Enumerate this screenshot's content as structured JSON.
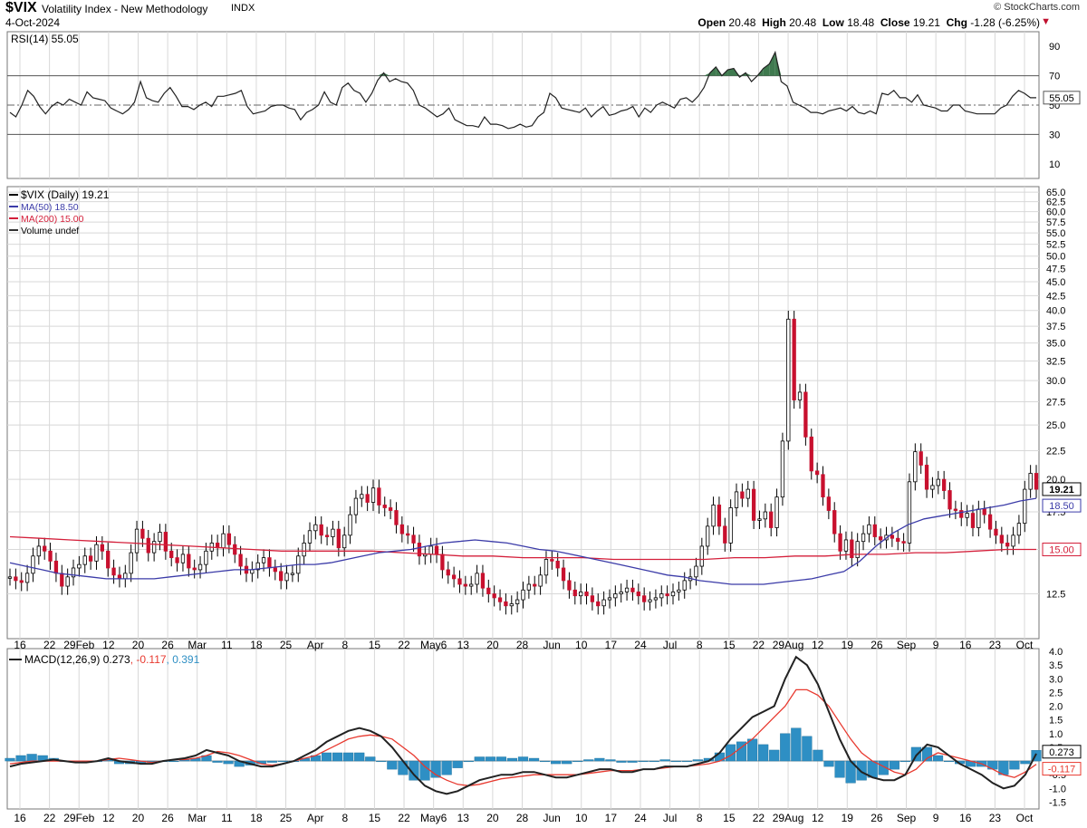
{
  "header": {
    "symbol": "$VIX",
    "name": "Volatility Index - New Methodology",
    "exchange": "INDX",
    "date": "4-Oct-2024",
    "brand": "© StockCharts.com",
    "open_label": "Open",
    "open": "20.48",
    "high_label": "High",
    "high": "20.48",
    "low_label": "Low",
    "low": "18.48",
    "close_label": "Close",
    "close": "19.21",
    "chg_label": "Chg",
    "chg": "-1.28 (-6.25%)",
    "down_arrow": "▼"
  },
  "colors": {
    "up": "#ffffff",
    "down": "#c8102e",
    "candle_outline": "#000000",
    "ma50": "#3b3ba8",
    "ma200": "#d41f3a",
    "rsi": "#222222",
    "rsi_overbought_fill": "#3f7a4f",
    "macd": "#222222",
    "signal": "#e8392f",
    "histogram": "#2e8fc4",
    "grid": "#d8d8d8"
  },
  "x_axis": {
    "ticks": [
      "16",
      "22",
      "29Feb",
      "12",
      "20",
      "26",
      "Mar",
      "11",
      "18",
      "25",
      "Apr",
      "8",
      "15",
      "22",
      "May6",
      "13",
      "20",
      "28",
      "Jun",
      "10",
      "17",
      "24",
      "Jul",
      "8",
      "15",
      "22",
      "29Aug",
      "12",
      "19",
      "26",
      "Sep",
      "9",
      "16",
      "23",
      "Oct"
    ]
  },
  "chart_data": [
    {
      "type": "line",
      "title": "RSI(14) 55.05",
      "series": [
        {
          "name": "RSI(14)",
          "last_label": "55.05"
        }
      ],
      "x_start": "16",
      "x_end": "Oct",
      "values": [
        45,
        42,
        50,
        60,
        56,
        49,
        44,
        49,
        52,
        50,
        54,
        52,
        50,
        59,
        55,
        54,
        53,
        48,
        46,
        44,
        47,
        52,
        66,
        55,
        53,
        52,
        58,
        62,
        56,
        49,
        49,
        47,
        50,
        52,
        49,
        56,
        56,
        57,
        58,
        60,
        49,
        44,
        45,
        46,
        49,
        50,
        50,
        48,
        47,
        40,
        45,
        47,
        50,
        59,
        52,
        50,
        62,
        65,
        60,
        58,
        52,
        58,
        67,
        72,
        66,
        68,
        66,
        65,
        60,
        50,
        48,
        45,
        42,
        44,
        48,
        40,
        38,
        36,
        36,
        35,
        42,
        37,
        37,
        36,
        34,
        35,
        37,
        35,
        36,
        42,
        45,
        58,
        55,
        48,
        47,
        46,
        45,
        48,
        42,
        46,
        49,
        43,
        44,
        46,
        47,
        49,
        42,
        48,
        45,
        50,
        52,
        50,
        48,
        54,
        55,
        52,
        56,
        62,
        72,
        76,
        70,
        74,
        75,
        69,
        72,
        66,
        70,
        75,
        78,
        86,
        66,
        63,
        52,
        50,
        48,
        45,
        45,
        44,
        46,
        47,
        48,
        46,
        49,
        45,
        44,
        46,
        44,
        58,
        57,
        60,
        55,
        55,
        52,
        57,
        50,
        49,
        48,
        46,
        46,
        50,
        50,
        46,
        45,
        44,
        44,
        44,
        44,
        48,
        50,
        56,
        60,
        58,
        55,
        55
      ],
      "y_ticks": [
        10,
        30,
        50,
        70,
        90
      ],
      "overbought": 70,
      "oversold": 30,
      "midline": 50,
      "ylim": [
        0,
        100
      ]
    },
    {
      "type": "candlestick",
      "title": "$VIX (Daily) 19.21",
      "legend": [
        "$VIX (Daily) 19.21",
        "MA(50) 18.50",
        "MA(200) 15.00",
        "Volume undef"
      ],
      "series": [
        {
          "name": "$VIX (Daily)",
          "last_label": "19.21"
        },
        {
          "name": "MA(50)",
          "last_label": "18.50"
        },
        {
          "name": "MA(200)",
          "last_label": "15.00"
        }
      ],
      "close": [
        13.4,
        13.2,
        13.1,
        13.6,
        14.6,
        15.2,
        14.9,
        14.3,
        13.6,
        12.9,
        13.4,
        13.9,
        14.1,
        14.6,
        14.3,
        15.3,
        14.9,
        13.9,
        13.5,
        13.3,
        13.6,
        14.8,
        16.3,
        15.7,
        14.8,
        15.5,
        16.1,
        14.9,
        14.5,
        14.2,
        14.7,
        13.9,
        13.8,
        14.1,
        14.9,
        15.4,
        15.1,
        16.0,
        15.3,
        14.7,
        14.0,
        13.6,
        13.8,
        14.2,
        14.5,
        13.9,
        13.7,
        13.2,
        13.6,
        13.6,
        14.6,
        15.4,
        16.2,
        16.6,
        15.9,
        15.8,
        16.3,
        15.1,
        15.9,
        17.3,
        18.5,
        18.8,
        18.2,
        19.3,
        18.0,
        17.8,
        17.6,
        16.6,
        16.0,
        15.9,
        15.4,
        14.6,
        14.7,
        15.2,
        14.7,
        13.8,
        13.5,
        13.3,
        13.0,
        12.9,
        13.0,
        13.6,
        12.8,
        12.5,
        12.3,
        12.1,
        11.9,
        12.0,
        12.2,
        12.7,
        13.0,
        12.9,
        13.5,
        14.4,
        14.3,
        13.9,
        13.2,
        12.7,
        12.4,
        12.6,
        12.4,
        12.1,
        11.9,
        12.2,
        12.3,
        12.5,
        12.6,
        12.8,
        12.6,
        12.4,
        12.1,
        12.2,
        12.3,
        12.5,
        12.4,
        12.6,
        12.7,
        13.2,
        13.4,
        14.0,
        15.2,
        16.5,
        18.0,
        16.5,
        15.4,
        17.8,
        19.0,
        18.5,
        19.2,
        16.9,
        17.0,
        17.5,
        16.4,
        18.6,
        23.4,
        38.6,
        27.7,
        28.6,
        23.8,
        20.7,
        20.4,
        18.6,
        17.6,
        16.0,
        14.9,
        15.6,
        14.5,
        15.5,
        16.0,
        16.6,
        15.8,
        15.6,
        15.9,
        15.7,
        15.5,
        15.4,
        19.8,
        22.4,
        21.2,
        19.2,
        19.5,
        20.0,
        19.1,
        17.7,
        17.6,
        17.1,
        17.4,
        16.4,
        17.7,
        17.3,
        16.3,
        15.9,
        15.4,
        15.2,
        15.9,
        16.7,
        19.2,
        20.5,
        19.2
      ],
      "ma50": [
        14.2,
        14.0,
        13.8,
        13.6,
        13.5,
        13.4,
        13.3,
        13.3,
        13.3,
        13.3,
        13.4,
        13.5,
        13.6,
        13.7,
        13.8,
        13.8,
        13.9,
        14.0,
        14.1,
        14.1,
        14.2,
        14.4,
        14.6,
        14.8,
        14.9,
        15.0,
        15.2,
        15.4,
        15.5,
        15.6,
        15.5,
        15.4,
        15.2,
        15.0,
        14.9,
        14.7,
        14.5,
        14.3,
        14.1,
        13.9,
        13.7,
        13.5,
        13.4,
        13.2,
        13.1,
        13.0,
        13.0,
        13.0,
        13.1,
        13.2,
        13.3,
        13.5,
        13.7,
        14.3,
        15.2,
        16.0,
        16.6,
        17.0,
        17.2,
        17.4,
        17.6,
        17.8,
        18.0,
        18.3,
        18.5
      ],
      "ma200": [
        15.8,
        15.7,
        15.6,
        15.5,
        15.4,
        15.3,
        15.2,
        15.1,
        15.0,
        14.9,
        14.9,
        14.9,
        14.9,
        14.8,
        14.7,
        14.6,
        14.6,
        14.5,
        14.5,
        14.5,
        14.4,
        14.4,
        14.4,
        14.4,
        14.5,
        14.5,
        14.6,
        14.6,
        14.7,
        14.7,
        14.8,
        14.8,
        14.9,
        15.0,
        15.0
      ],
      "y_ticks": [
        12.5,
        15.0,
        17.5,
        20.0,
        22.5,
        25.0,
        27.5,
        30.0,
        32.5,
        35.0,
        37.5,
        40.0,
        42.5,
        45.0,
        47.5,
        50.0,
        52.5,
        55.0,
        57.5,
        60.0,
        62.5,
        65.0
      ],
      "y_scale": "log",
      "ylim": [
        10.4,
        66.5
      ]
    },
    {
      "type": "line",
      "title": "MACD(12,26,9) 0.273, -0.117, 0.391",
      "legend": {
        "macd_label": "MACD(12,26,9) 0.273",
        "signal_label": ", -0.117",
        "hist_label": ", 0.391"
      },
      "series": [
        {
          "name": "MACD(12,26,9)",
          "last_label": "0.273"
        },
        {
          "name": "Signal",
          "last_label": "-0.117"
        },
        {
          "name": "Histogram",
          "last_label": "0.391"
        }
      ],
      "macd": [
        -0.2,
        -0.1,
        -0.05,
        0.0,
        0.05,
        0.0,
        -0.05,
        -0.05,
        0.0,
        0.1,
        0.0,
        -0.05,
        -0.1,
        -0.1,
        0.0,
        0.05,
        0.1,
        0.2,
        0.4,
        0.3,
        0.2,
        0.0,
        -0.1,
        -0.2,
        -0.2,
        -0.1,
        0.0,
        0.2,
        0.4,
        0.7,
        0.9,
        1.1,
        1.2,
        1.1,
        0.9,
        0.5,
        0.0,
        -0.5,
        -0.9,
        -1.1,
        -1.2,
        -1.1,
        -0.9,
        -0.7,
        -0.6,
        -0.5,
        -0.5,
        -0.4,
        -0.4,
        -0.5,
        -0.6,
        -0.6,
        -0.5,
        -0.4,
        -0.3,
        -0.3,
        -0.4,
        -0.4,
        -0.3,
        -0.3,
        -0.2,
        -0.2,
        -0.2,
        -0.1,
        0.0,
        0.3,
        0.8,
        1.2,
        1.6,
        1.8,
        2.0,
        3.0,
        3.8,
        3.5,
        2.8,
        1.8,
        0.8,
        0.0,
        -0.4,
        -0.6,
        -0.7,
        -0.7,
        -0.5,
        0.2,
        0.6,
        0.5,
        0.2,
        -0.1,
        -0.3,
        -0.5,
        -0.8,
        -1.0,
        -0.9,
        -0.5,
        0.27
      ],
      "signal": [
        -0.1,
        -0.05,
        0.0,
        0.0,
        0.0,
        0.0,
        0.0,
        0.0,
        0.0,
        0.05,
        0.1,
        0.05,
        0.0,
        -0.05,
        0.0,
        0.05,
        0.05,
        0.1,
        0.2,
        0.35,
        0.3,
        0.2,
        0.05,
        -0.1,
        -0.15,
        -0.1,
        0.0,
        0.1,
        0.2,
        0.4,
        0.6,
        0.8,
        0.9,
        0.95,
        0.9,
        0.8,
        0.5,
        0.2,
        -0.2,
        -0.5,
        -0.7,
        -0.85,
        -0.9,
        -0.85,
        -0.75,
        -0.65,
        -0.6,
        -0.55,
        -0.5,
        -0.5,
        -0.5,
        -0.5,
        -0.5,
        -0.45,
        -0.4,
        -0.35,
        -0.35,
        -0.35,
        -0.3,
        -0.3,
        -0.25,
        -0.2,
        -0.2,
        -0.15,
        -0.1,
        0.0,
        0.2,
        0.5,
        0.8,
        1.2,
        1.6,
        2.0,
        2.6,
        2.6,
        2.4,
        2.0,
        1.4,
        0.8,
        0.3,
        0.0,
        -0.2,
        -0.4,
        -0.5,
        -0.3,
        0.1,
        0.3,
        0.2,
        0.1,
        0.0,
        -0.1,
        -0.3,
        -0.5,
        -0.6,
        -0.4,
        -0.12
      ],
      "histogram": [
        0.1,
        0.2,
        0.25,
        0.2,
        0.1,
        0.0,
        -0.05,
        -0.05,
        0.0,
        0.05,
        -0.1,
        -0.1,
        -0.1,
        -0.05,
        0.0,
        0.0,
        0.05,
        0.1,
        0.2,
        -0.05,
        -0.1,
        -0.2,
        -0.15,
        -0.1,
        -0.05,
        0.0,
        0.0,
        0.1,
        0.2,
        0.3,
        0.3,
        0.3,
        0.3,
        0.15,
        0.0,
        -0.3,
        -0.5,
        -0.7,
        -0.7,
        -0.6,
        -0.5,
        -0.25,
        0.0,
        0.15,
        0.15,
        0.15,
        0.1,
        0.15,
        0.1,
        0.0,
        -0.1,
        -0.1,
        0.0,
        0.05,
        0.1,
        0.05,
        -0.05,
        -0.05,
        0.0,
        0.0,
        0.05,
        0.0,
        0.0,
        0.05,
        0.1,
        0.3,
        0.6,
        0.7,
        0.8,
        0.6,
        0.4,
        1.0,
        1.2,
        0.9,
        0.4,
        -0.2,
        -0.6,
        -0.8,
        -0.7,
        -0.6,
        -0.5,
        -0.3,
        0.0,
        0.5,
        0.5,
        0.2,
        0.0,
        -0.1,
        -0.2,
        -0.2,
        -0.3,
        -0.5,
        -0.3,
        -0.1,
        0.39
      ],
      "y_ticks": [
        -1.5,
        -1.0,
        -0.5,
        0.5,
        1.0,
        1.5,
        2.0,
        2.5,
        3.0,
        3.5,
        4.0
      ],
      "ylim": [
        -1.75,
        4.1
      ]
    }
  ]
}
